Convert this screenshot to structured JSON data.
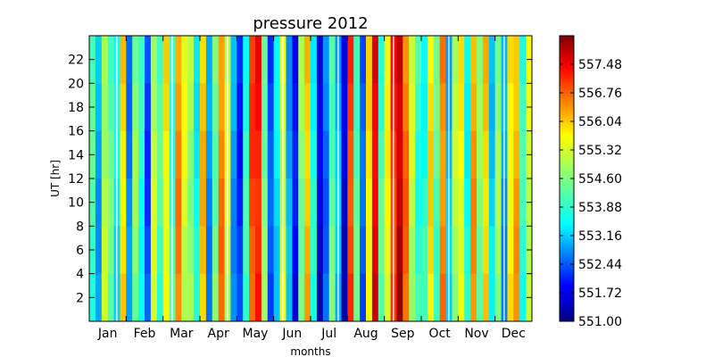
{
  "chart_data": {
    "type": "heatmap",
    "title": "pressure 2012",
    "xlabel": "months",
    "ylabel": "UT [hr]",
    "x_categories": [
      "Jan",
      "Feb",
      "Mar",
      "Apr",
      "May",
      "Jun",
      "Jul",
      "Aug",
      "Sep",
      "Oct",
      "Nov",
      "Dec"
    ],
    "y_ticks": [
      2,
      4,
      6,
      8,
      10,
      12,
      14,
      16,
      18,
      20,
      22
    ],
    "ylim": [
      0,
      24
    ],
    "colorbar": {
      "min": 551.0,
      "max": 558.2,
      "ticks": [
        "551.00",
        "551.72",
        "552.44",
        "553.16",
        "553.88",
        "554.60",
        "555.32",
        "556.04",
        "556.76",
        "557.48"
      ],
      "colormap": "jet"
    },
    "columns_per_month": 6,
    "z_by_column": [
      554.2,
      553.1,
      555.0,
      554.4,
      553.6,
      555.8,
      552.8,
      554.6,
      553.9,
      552.4,
      555.1,
      554.2,
      555.6,
      554.1,
      556.3,
      555.2,
      554.8,
      553.7,
      555.9,
      552.9,
      554.5,
      556.4,
      555.1,
      553.0,
      552.2,
      554.0,
      556.8,
      557.2,
      554.6,
      552.4,
      553.5,
      555.3,
      553.1,
      551.9,
      554.7,
      556.0,
      553.8,
      551.6,
      552.7,
      554.4,
      553.2,
      551.5,
      556.9,
      554.3,
      552.5,
      555.6,
      557.5,
      554.2,
      555.4,
      557.0,
      557.8,
      556.5,
      555.0,
      554.1,
      553.9,
      555.7,
      554.3,
      556.4,
      553.2,
      554.9,
      555.5,
      553.8,
      556.2,
      554.6,
      555.9,
      553.4,
      554.7,
      553.0,
      555.6,
      556.1,
      554.0,
      555.2
    ],
    "missing_data": "white gaps"
  }
}
